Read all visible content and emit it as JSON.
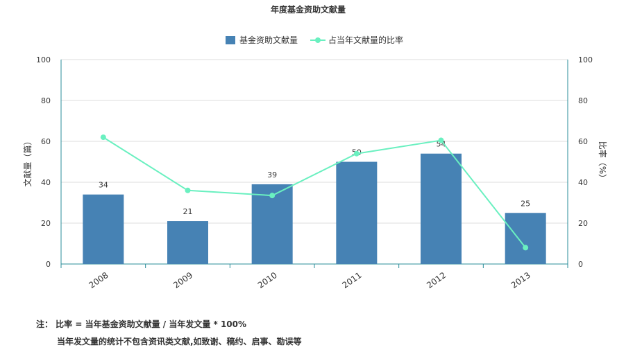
{
  "chart_data": {
    "type": "bar",
    "title": "年度基金资助文献量",
    "categories": [
      "2008",
      "2009",
      "2010",
      "2011",
      "2012",
      "2013"
    ],
    "series": [
      {
        "name": "基金资助文献量",
        "type": "bar",
        "axis": "left",
        "values": [
          34,
          21,
          39,
          50,
          54,
          25
        ],
        "color": "#4682b4"
      },
      {
        "name": "占当年文献量的比率",
        "type": "line",
        "axis": "right",
        "values": [
          62,
          36,
          33.5,
          54,
          60.5,
          8
        ],
        "color": "#6af0c0"
      }
    ],
    "ylabel": "文献量（篇）",
    "ylabel_right": "比率（%）",
    "ylim": [
      0,
      100
    ],
    "ylim_right": [
      0,
      100
    ],
    "yticks": [
      0,
      20,
      40,
      60,
      80,
      100
    ],
    "grid": true,
    "legend": "top-center"
  },
  "notes": {
    "line1": "注： 比率 = 当年基金资助文献量 / 当年发文量 * 100%",
    "line2": "当年发文量的统计不包含资讯类文献,如致谢、稿约、启事、勘误等"
  },
  "colors": {
    "axis": "#2a8c99",
    "grid": "#dddddd",
    "text": "#333333"
  }
}
